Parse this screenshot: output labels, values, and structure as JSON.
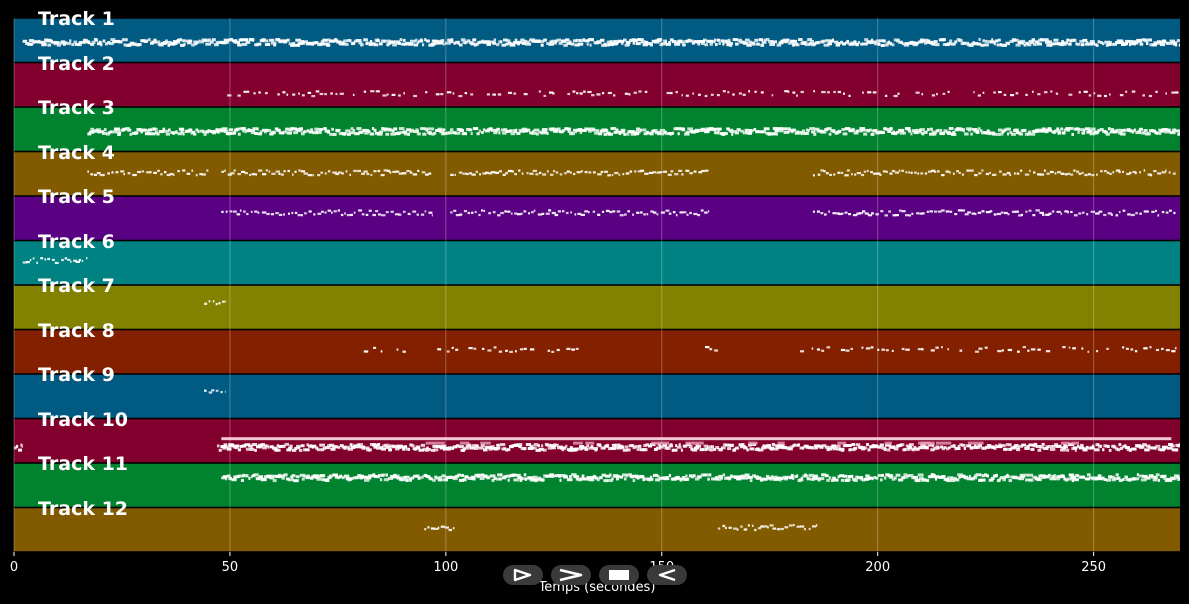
{
  "chart_data": {
    "type": "piano-roll",
    "xlabel": "Temps (secondes)",
    "xlim": [
      0,
      270
    ],
    "xticks": [
      0,
      50,
      100,
      150,
      200,
      250
    ],
    "grid": true,
    "tracks": [
      {
        "name": "Track 1",
        "color": "#005a82",
        "regions": [
          [
            2,
            270
          ]
        ],
        "density": "dense",
        "row_offset": 0.55
      },
      {
        "name": "Track 2",
        "color": "#82002e",
        "regions": [
          [
            48,
            270
          ]
        ],
        "density": "sparse",
        "row_offset": 0.7
      },
      {
        "name": "Track 3",
        "color": "#00822e",
        "regions": [
          [
            17,
            270
          ]
        ],
        "density": "dense",
        "row_offset": 0.55
      },
      {
        "name": "Track 4",
        "color": "#825a00",
        "regions": [
          [
            17,
            45
          ],
          [
            48,
            97
          ],
          [
            101,
            161
          ],
          [
            185,
            269
          ]
        ],
        "density": "medium",
        "row_offset": 0.48
      },
      {
        "name": "Track 5",
        "color": "#5a0082",
        "regions": [
          [
            48,
            97
          ],
          [
            101,
            161
          ],
          [
            185,
            269
          ]
        ],
        "density": "medium",
        "row_offset": 0.38
      },
      {
        "name": "Track 6",
        "color": "#008282",
        "regions": [
          [
            2,
            17
          ]
        ],
        "density": "medium",
        "row_offset": 0.45
      },
      {
        "name": "Track 7",
        "color": "#828200",
        "regions": [
          [
            44,
            49
          ]
        ],
        "density": "medium",
        "row_offset": 0.38
      },
      {
        "name": "Track 8",
        "color": "#822000",
        "regions": [
          [
            81,
            92
          ],
          [
            98,
            131
          ],
          [
            160,
            163
          ],
          [
            182,
            270
          ]
        ],
        "density": "sparse",
        "row_offset": 0.45
      },
      {
        "name": "Track 9",
        "color": "#005a82",
        "regions": [
          [
            44,
            49
          ]
        ],
        "density": "medium",
        "row_offset": 0.42
      },
      {
        "name": "Track 10",
        "color": "#82002e",
        "regions": [
          [
            0,
            2
          ],
          [
            47,
            270
          ]
        ],
        "density": "dense",
        "row_offset": 0.65,
        "sustain": [
          48,
          268
        ]
      },
      {
        "name": "Track 11",
        "color": "#00822e",
        "regions": [
          [
            48,
            270
          ]
        ],
        "density": "dense",
        "row_offset": 0.33
      },
      {
        "name": "Track 12",
        "color": "#825a00",
        "regions": [
          [
            95,
            102
          ],
          [
            163,
            186
          ]
        ],
        "density": "medium",
        "row_offset": 0.45
      }
    ]
  },
  "controls": [
    {
      "name": "play-outline",
      "icon": "play-outline-icon"
    },
    {
      "name": "forward",
      "icon": "chevron-right-icon"
    },
    {
      "name": "stop",
      "icon": "stop-icon"
    },
    {
      "name": "rewind",
      "icon": "play-reverse-icon"
    }
  ]
}
